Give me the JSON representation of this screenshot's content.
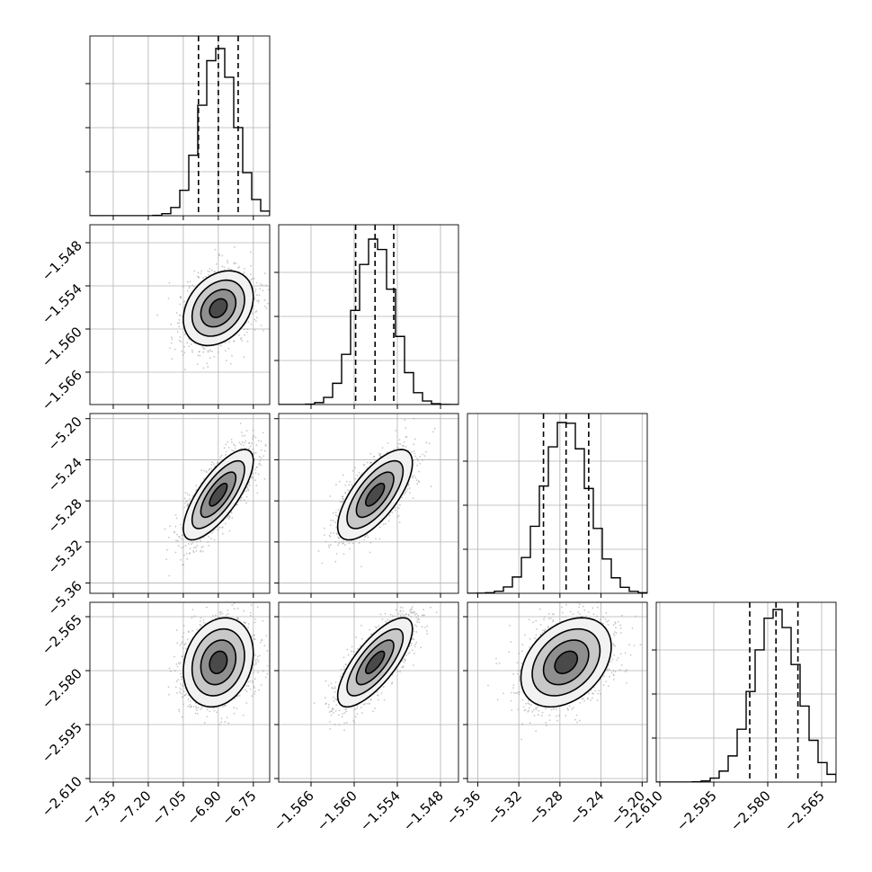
{
  "chart_data": {
    "type": "corner",
    "parameters": [
      {
        "range": [
          -7.45,
          -6.68
        ],
        "ticks": [
          -7.35,
          -7.2,
          -7.05,
          -6.9,
          -6.75
        ],
        "tick_labels": [
          "−7.35",
          "−7.20",
          "−7.05",
          "−6.90",
          "−6.75"
        ],
        "quantiles": [
          -6.985,
          -6.9,
          -6.815
        ],
        "mean": -6.9,
        "sd": 0.075
      },
      {
        "range": [
          -1.5705,
          -1.5455
        ],
        "ticks": [
          -1.566,
          -1.56,
          -1.554,
          -1.548
        ],
        "tick_labels": [
          "−1.566",
          "−1.560",
          "−1.554",
          "−1.548"
        ],
        "quantiles": [
          -1.5598,
          -1.5571,
          -1.5545
        ],
        "mean": -1.5571,
        "sd": 0.0026
      },
      {
        "range": [
          -5.37,
          -5.195
        ],
        "ticks": [
          -5.36,
          -5.32,
          -5.28,
          -5.24,
          -5.2
        ],
        "tick_labels": [
          "−5.36",
          "−5.32",
          "−5.28",
          "−5.24",
          "−5.20"
        ],
        "quantiles": [
          -5.296,
          -5.274,
          -5.252
        ],
        "mean": -5.274,
        "sd": 0.022
      },
      {
        "range": [
          -2.611,
          -2.561
        ],
        "ticks": [
          -2.61,
          -2.595,
          -2.58,
          -2.565
        ],
        "tick_labels": [
          "−2.610",
          "−2.595",
          "−2.580",
          "−2.565"
        ],
        "quantiles": [
          -2.585,
          -2.5777,
          -2.5716
        ],
        "mean": -2.5777,
        "sd": 0.0062
      }
    ],
    "histogram_peaks": [
      0.93,
      0.92,
      0.95,
      0.96
    ],
    "correlations": [
      [
        1,
        0.3,
        0.75,
        0.2
      ],
      [
        0.3,
        1,
        0.7,
        0.75
      ],
      [
        0.75,
        0.7,
        1,
        0.35
      ],
      [
        0.2,
        0.75,
        0.35,
        1
      ]
    ],
    "contour_levels_sigma": [
      0.5,
      1.0,
      1.5,
      2.0
    ],
    "quantile_line_style": "dashed",
    "grid": true,
    "colors": {
      "line": "#000000",
      "points": "#9a9a9a",
      "grid": "#b0b0b0"
    }
  }
}
